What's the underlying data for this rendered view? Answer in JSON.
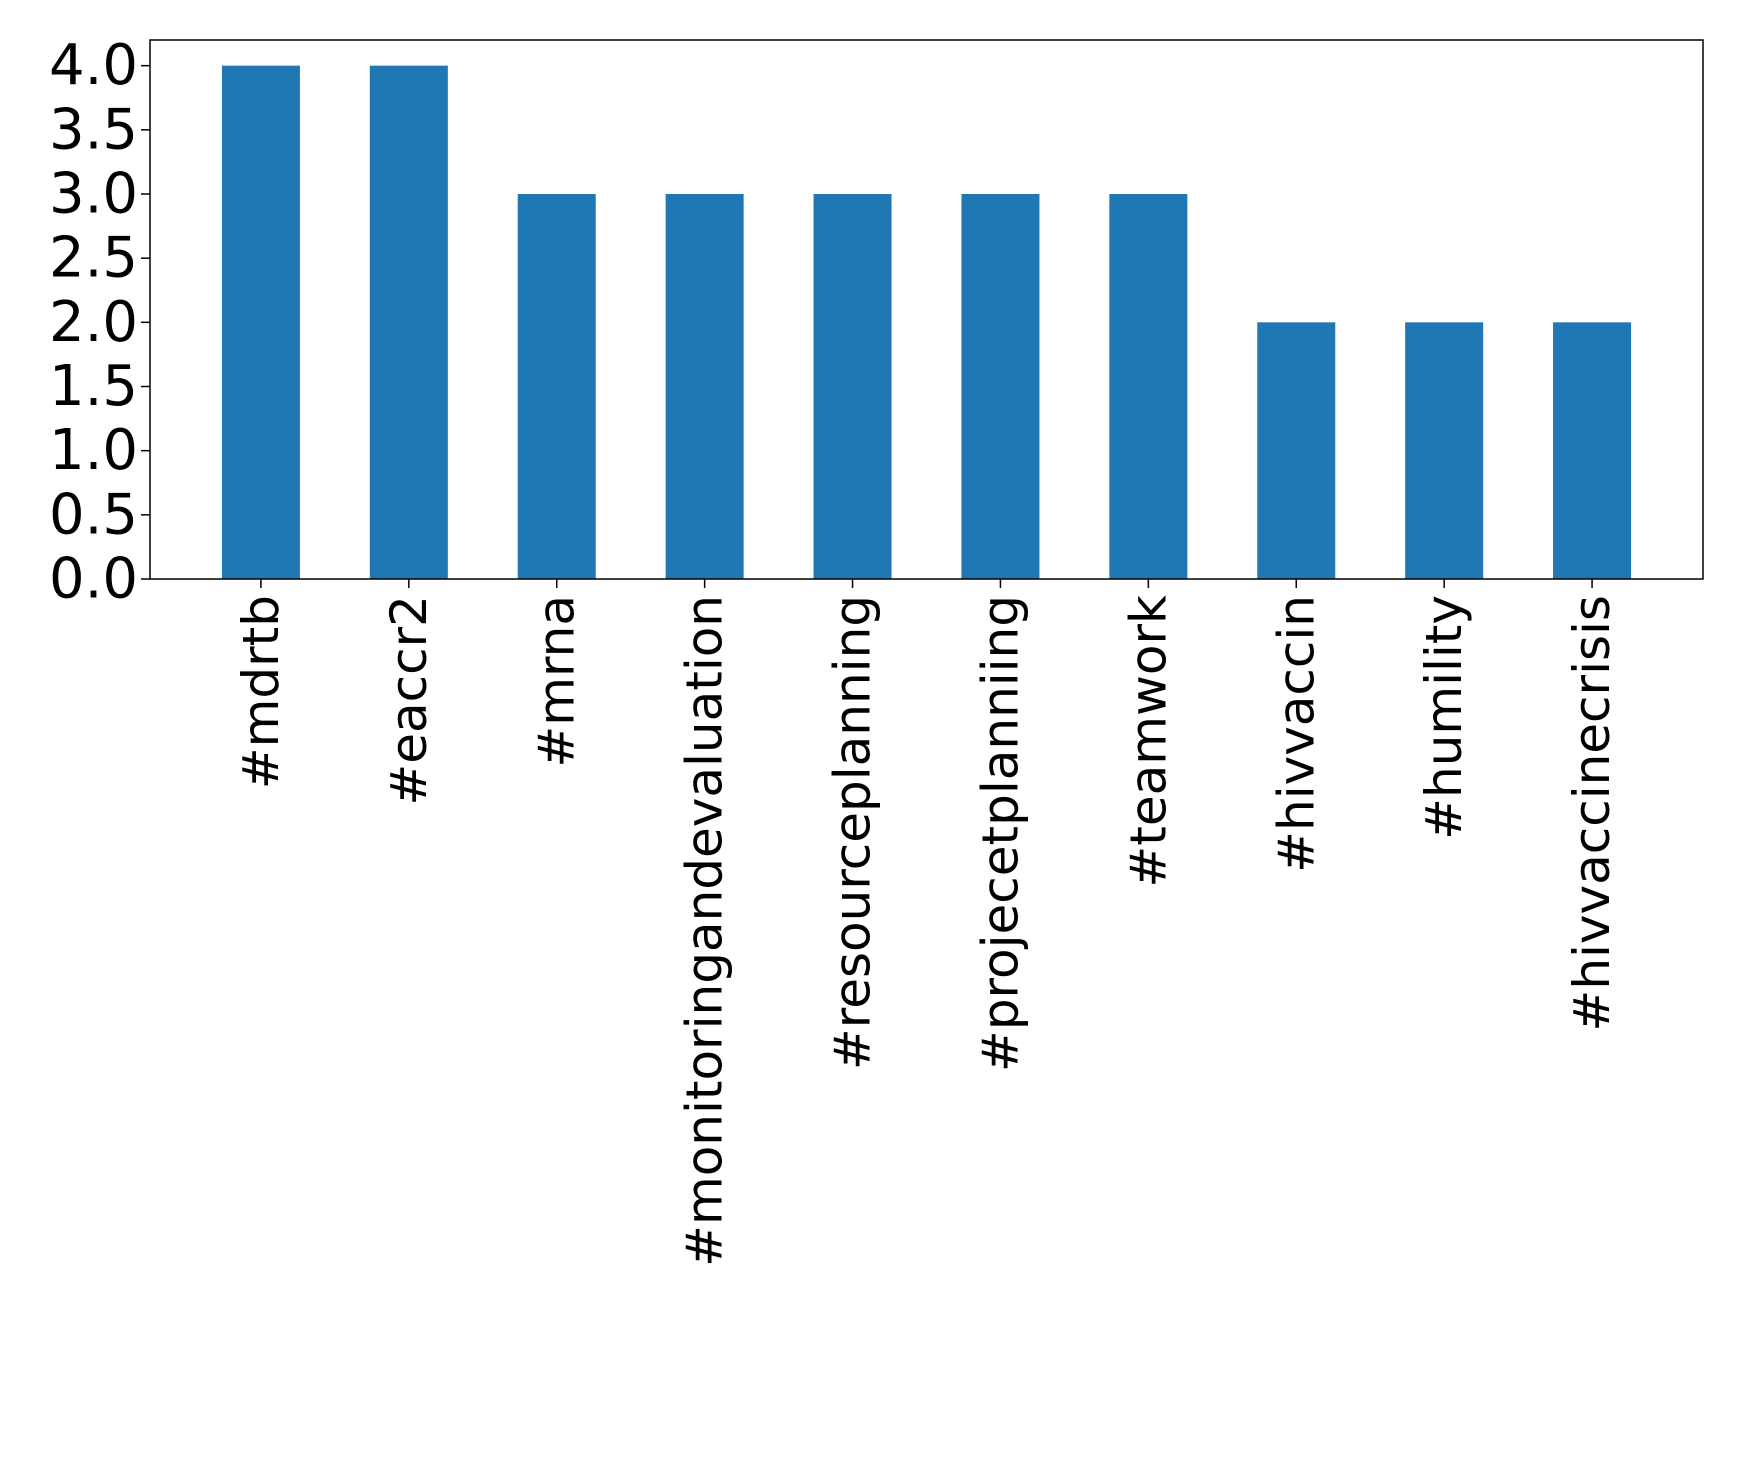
{
  "chart_data": {
    "type": "bar",
    "title": "",
    "xlabel": "",
    "ylabel": "",
    "categories": [
      "#mdrtb",
      "#eaccr2",
      "#mrna",
      "#monitoringandevaluation",
      "#resourceplanning",
      "#projecetplanniing",
      "#teamwork",
      "#hivvaccin",
      "#humility",
      "#hivvaccinecrisis"
    ],
    "values": [
      4,
      4,
      3,
      3,
      3,
      3,
      3,
      2,
      2,
      2
    ],
    "ylim": [
      0,
      4.2
    ],
    "yticks": [
      "0.0",
      "0.5",
      "1.0",
      "1.5",
      "2.0",
      "2.5",
      "3.0",
      "3.5",
      "4.0"
    ],
    "x_tick_rotation": "vertical",
    "grid": false,
    "legend": "none",
    "colors": {
      "bar": "#1f77b4",
      "axis": "#000000",
      "background": "#ffffff"
    }
  }
}
